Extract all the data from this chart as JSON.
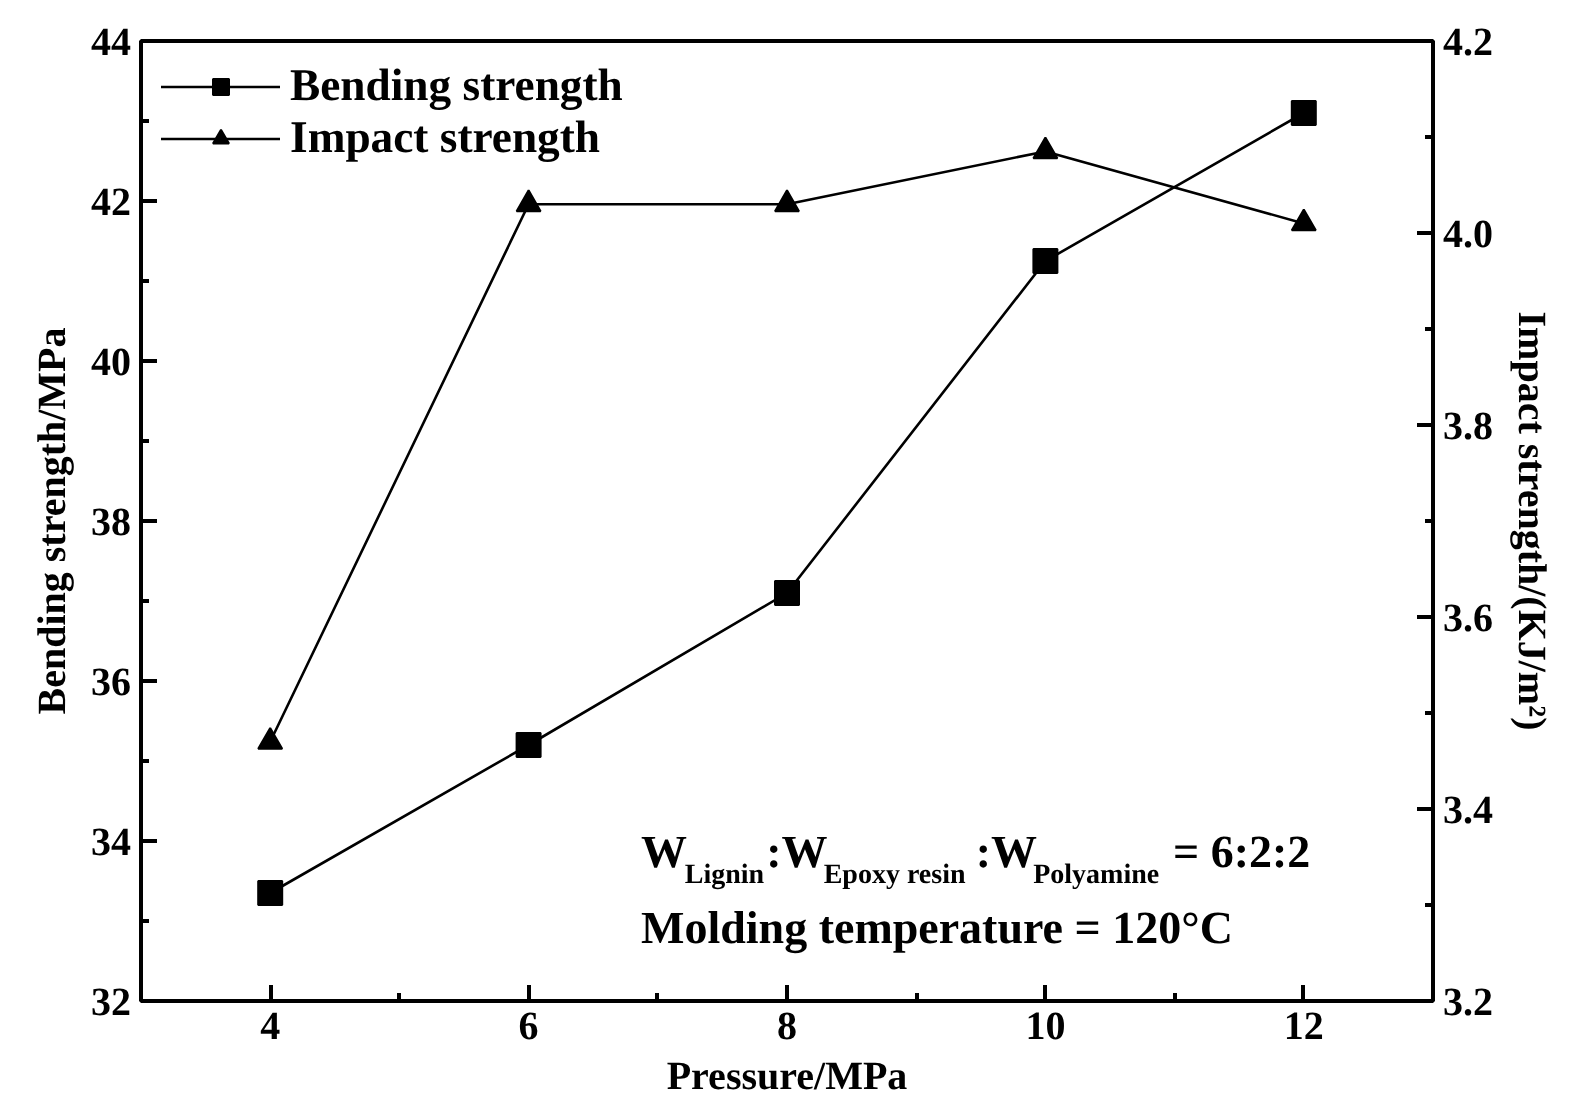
{
  "chart_data": {
    "type": "line",
    "xlabel": "Pressure/MPa",
    "ylabel": "Bending strength/MPa",
    "y2label": "Impact strength/(KJ/m²)",
    "x": [
      4,
      6,
      8,
      10,
      12
    ],
    "series": [
      {
        "name": "Bending strength",
        "color": "#000000",
        "marker": "square",
        "values": [
          33.35,
          35.2,
          37.1,
          41.25,
          43.1
        ]
      },
      {
        "name": "Impact strength",
        "color": "#000000",
        "marker": "triangle",
        "axis": "y2",
        "values": [
          3.47,
          4.03,
          4.03,
          4.085,
          4.01
        ]
      }
    ],
    "xlim": [
      3,
      13
    ],
    "xticks": [
      4,
      6,
      8,
      10,
      12
    ],
    "ylim": [
      32,
      44
    ],
    "yticks": [
      32,
      34,
      36,
      38,
      40,
      42,
      44
    ],
    "y2lim": [
      3.2,
      4.2
    ],
    "y2ticks": [
      3.2,
      3.4,
      3.6,
      3.8,
      {
        "value": 4,
        "label": "4.0"
      },
      4.2
    ],
    "legend": "top left",
    "grid": false,
    "line_style": "solid",
    "annotations": [
      "W$_{Lignin}$:W$_{Epoxy resin}$:W$_{Polyamine}$ = 6:2:2",
      "Molding temperature = 120°C"
    ]
  }
}
